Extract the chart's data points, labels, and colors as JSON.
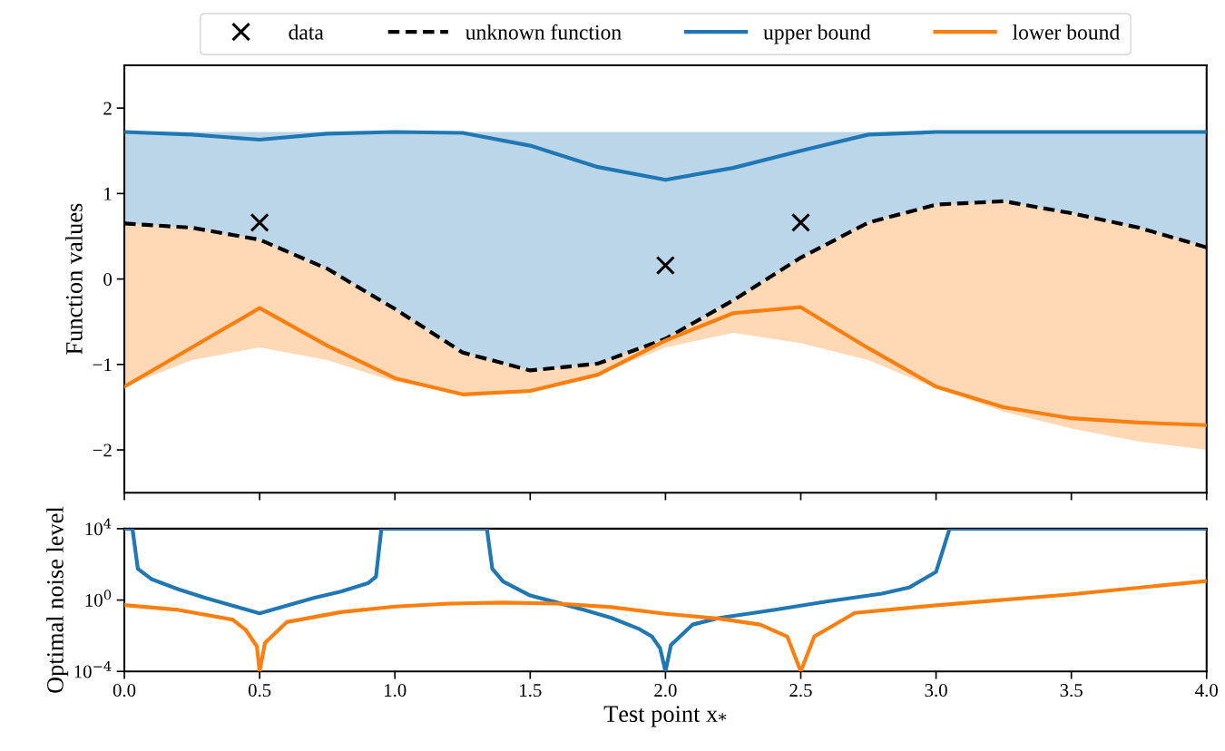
{
  "chart_data": [
    {
      "type": "line",
      "ylabel": "Function values",
      "legend": "top",
      "tick_labels": "y",
      "x": [
        0,
        0.25,
        0.5,
        0.75,
        1.0,
        1.25,
        1.5,
        1.75,
        2.0,
        2.25,
        2.5,
        2.75,
        3.0,
        3.25,
        3.5,
        3.75,
        4.0
      ],
      "xlim": [
        0,
        4
      ],
      "ylim": [
        -2.5,
        2.5
      ],
      "xticks": [
        {
          "value": 0,
          "label": null
        },
        {
          "value": 0.5,
          "label": null
        },
        {
          "value": 1,
          "label": null
        },
        {
          "value": 1.5,
          "label": null
        },
        {
          "value": 2,
          "label": null
        },
        {
          "value": 2.5,
          "label": null
        },
        {
          "value": 3,
          "label": null
        },
        {
          "value": 3.5,
          "label": null
        },
        {
          "value": 4,
          "label": null
        }
      ],
      "yticks": [
        {
          "value": -2,
          "label": "−2"
        },
        {
          "value": -1,
          "label": "−1"
        },
        0,
        1,
        2
      ],
      "series": [
        {
          "name": "data",
          "type": "scatter",
          "marker": "cross",
          "color": "#000000",
          "x": [
            0.5,
            2.0,
            2.5
          ],
          "values": [
            0.66,
            0.16,
            0.66
          ]
        },
        {
          "name": "unknown function",
          "type": "line",
          "line_style": "dashed",
          "color": "#000000",
          "values": [
            0.65,
            0.6,
            0.46,
            0.12,
            -0.35,
            -0.86,
            -1.07,
            -0.99,
            -0.7,
            -0.25,
            0.25,
            0.66,
            0.87,
            0.91,
            0.77,
            0.6,
            0.37
          ]
        },
        {
          "name": "upper bound",
          "type": "line",
          "color": "#1f77b4",
          "values": [
            1.72,
            1.69,
            1.63,
            1.7,
            1.72,
            1.71,
            1.56,
            1.31,
            1.16,
            1.3,
            1.5,
            1.69,
            1.72,
            1.72,
            1.72,
            1.72,
            1.72
          ],
          "upper": [
            1.72,
            1.72,
            1.72,
            1.72,
            1.72,
            1.72,
            1.72,
            1.72,
            1.72,
            1.72,
            1.72,
            1.72,
            1.72,
            1.72,
            1.72,
            1.72,
            1.72
          ],
          "lower": [
            0.65,
            0.6,
            0.46,
            0.12,
            -0.35,
            -0.86,
            -1.07,
            -0.99,
            -0.7,
            -0.25,
            0.25,
            0.66,
            0.87,
            0.91,
            0.77,
            0.6,
            0.37
          ]
        },
        {
          "name": "lower bound",
          "type": "line",
          "color": "#ff7f0e",
          "values": [
            -1.26,
            -0.8,
            -0.34,
            -0.78,
            -1.16,
            -1.35,
            -1.31,
            -1.12,
            -0.72,
            -0.4,
            -0.33,
            -0.81,
            -1.26,
            -1.5,
            -1.63,
            -1.68,
            -1.71
          ],
          "upper": [
            0.65,
            0.6,
            0.46,
            0.12,
            -0.35,
            -0.86,
            -1.07,
            -0.99,
            -0.7,
            -0.25,
            0.25,
            0.66,
            0.87,
            0.91,
            0.77,
            0.6,
            0.37
          ],
          "lower": [
            -1.26,
            -0.95,
            -0.8,
            -0.95,
            -1.2,
            -1.35,
            -1.31,
            -1.12,
            -0.8,
            -0.63,
            -0.75,
            -0.95,
            -1.28,
            -1.55,
            -1.75,
            -1.9,
            -2.0
          ]
        }
      ]
    },
    {
      "type": "line",
      "ylabel": "Optimal noise level",
      "xlabel": "Test point x$_{*}$",
      "log": "y",
      "xlim": [
        0,
        4
      ],
      "ylim": [
        0.0001,
        10000
      ],
      "xticks": [
        {
          "value": 0,
          "label": "0.0"
        },
        {
          "value": 0.5,
          "label": "0.5"
        },
        {
          "value": 1,
          "label": "1.0"
        },
        {
          "value": 1.5,
          "label": "1.5"
        },
        {
          "value": 2,
          "label": "2.0"
        },
        {
          "value": 2.5,
          "label": "2.5"
        },
        {
          "value": 3,
          "label": "3.0"
        },
        {
          "value": 3.5,
          "label": "3.5"
        },
        {
          "value": 4,
          "label": "4.0"
        }
      ],
      "yticks": [
        {
          "value": 0.0001,
          "label": "10$^{−4}$"
        },
        {
          "value": 1,
          "label": "10$^{0}$"
        },
        {
          "value": 10000,
          "label": "10$^{4}$"
        }
      ],
      "series": [
        {
          "color": "#1f77b4",
          "x": [
            0,
            0.03,
            0.05,
            0.1,
            0.2,
            0.3,
            0.4,
            0.5,
            0.6,
            0.7,
            0.8,
            0.9,
            0.93,
            0.95,
            1.34,
            1.36,
            1.4,
            1.5,
            1.6,
            1.7,
            1.8,
            1.9,
            1.95,
            1.98,
            2.0,
            2.02,
            2.1,
            2.2,
            2.4,
            2.6,
            2.8,
            2.9,
            3.0,
            3.05,
            4.0
          ],
          "values": [
            10000,
            10000,
            56,
            15,
            4,
            1.3,
            0.48,
            0.18,
            0.48,
            1.3,
            3,
            8.7,
            20,
            10000,
            10000,
            56,
            11,
            1.8,
            0.72,
            0.28,
            0.1,
            0.025,
            0.009,
            0.002,
            0.0001,
            0.003,
            0.042,
            0.1,
            0.28,
            0.85,
            2.3,
            5,
            38,
            10000,
            10000
          ]
        },
        {
          "color": "#ff7f0e",
          "x": [
            0,
            0.2,
            0.4,
            0.45,
            0.49,
            0.5,
            0.52,
            0.6,
            0.8,
            1.0,
            1.2,
            1.4,
            1.6,
            1.8,
            2.0,
            2.2,
            2.35,
            2.45,
            2.5,
            2.55,
            2.7,
            3.0,
            3.5,
            4.0
          ],
          "values": [
            0.52,
            0.28,
            0.08,
            0.02,
            0.0025,
            0.0001,
            0.004,
            0.058,
            0.21,
            0.43,
            0.63,
            0.72,
            0.63,
            0.4,
            0.17,
            0.09,
            0.042,
            0.009,
            0.0001,
            0.009,
            0.19,
            0.51,
            2.1,
            11.7
          ]
        }
      ]
    }
  ]
}
